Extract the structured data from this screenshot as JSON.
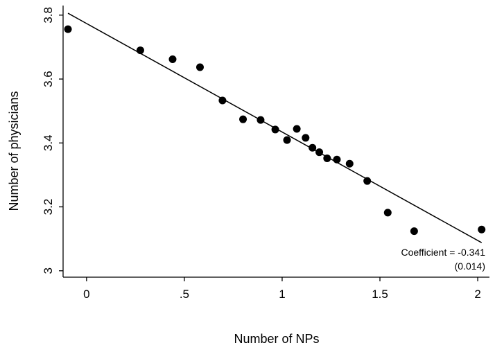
{
  "chart_data": {
    "type": "scatter",
    "xlabel": "Number of NPs",
    "ylabel": "Number of physicians",
    "xlim": [
      -0.12,
      2.06
    ],
    "ylim": [
      2.98,
      3.83
    ],
    "x_ticks": [
      0,
      0.5,
      1,
      1.5,
      2
    ],
    "x_tick_labels": [
      "0",
      ".5",
      "1",
      "1.5",
      "2"
    ],
    "y_ticks": [
      3.0,
      3.2,
      3.4,
      3.6,
      3.8
    ],
    "y_tick_labels": [
      "3",
      "3.2",
      "3.4",
      "3.6",
      "3.8"
    ],
    "grid": false,
    "points": [
      {
        "x": -0.095,
        "y": 3.756
      },
      {
        "x": 0.275,
        "y": 3.69
      },
      {
        "x": 0.44,
        "y": 3.662
      },
      {
        "x": 0.58,
        "y": 3.637
      },
      {
        "x": 0.695,
        "y": 3.533
      },
      {
        "x": 0.8,
        "y": 3.474
      },
      {
        "x": 0.89,
        "y": 3.472
      },
      {
        "x": 0.965,
        "y": 3.442
      },
      {
        "x": 1.025,
        "y": 3.409
      },
      {
        "x": 1.075,
        "y": 3.444
      },
      {
        "x": 1.12,
        "y": 3.416
      },
      {
        "x": 1.155,
        "y": 3.385
      },
      {
        "x": 1.19,
        "y": 3.371
      },
      {
        "x": 1.23,
        "y": 3.352
      },
      {
        "x": 1.28,
        "y": 3.348
      },
      {
        "x": 1.345,
        "y": 3.335
      },
      {
        "x": 1.435,
        "y": 3.281
      },
      {
        "x": 1.54,
        "y": 3.182
      },
      {
        "x": 1.675,
        "y": 3.124
      },
      {
        "x": 2.02,
        "y": 3.129
      }
    ],
    "fit_line": {
      "x": [
        -0.095,
        2.02
      ],
      "y": [
        3.806,
        3.088
      ]
    },
    "annotation": {
      "line1": "Coefficient = -0.341",
      "line2": "(0.014)"
    }
  }
}
